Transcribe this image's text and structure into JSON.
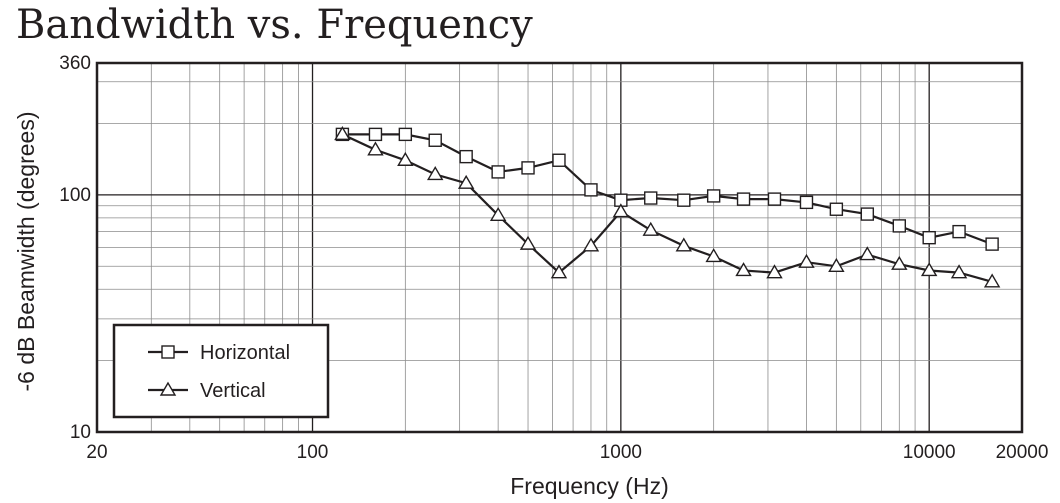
{
  "chart_data": {
    "type": "line",
    "title": "Bandwidth vs. Frequency",
    "xlabel": "Frequency (Hz)",
    "ylabel": "-6 dB Beamwidth (degrees)",
    "x_scale": "log",
    "y_scale": "log",
    "xlim": [
      20,
      20000
    ],
    "ylim": [
      10,
      360
    ],
    "x_ticks": [
      "20",
      "100",
      "1000",
      "10000",
      "20000"
    ],
    "y_ticks": [
      "10",
      "100",
      "360"
    ],
    "grid": true,
    "legend_position": "bottom-left",
    "colors": {
      "line": "#231f20",
      "grid": "#8c8c8c",
      "marker_fill": "#ffffff"
    },
    "x": [
      125,
      160,
      200,
      250,
      315,
      400,
      500,
      630,
      800,
      1000,
      1250,
      1600,
      2000,
      2500,
      3150,
      4000,
      5000,
      6300,
      8000,
      10000,
      12500,
      16000
    ],
    "series": [
      {
        "name": "Horizontal",
        "marker": "square",
        "values": [
          180,
          180,
          180,
          170,
          145,
          125,
          130,
          140,
          105,
          95,
          97,
          95,
          99,
          96,
          96,
          93,
          87,
          83,
          74,
          66,
          70,
          62
        ]
      },
      {
        "name": "Vertical",
        "marker": "triangle",
        "values": [
          180,
          155,
          140,
          122,
          112,
          82,
          62,
          47,
          61,
          85,
          71,
          61,
          55,
          48,
          47,
          52,
          50,
          56,
          51,
          48,
          47,
          43
        ]
      }
    ]
  }
}
